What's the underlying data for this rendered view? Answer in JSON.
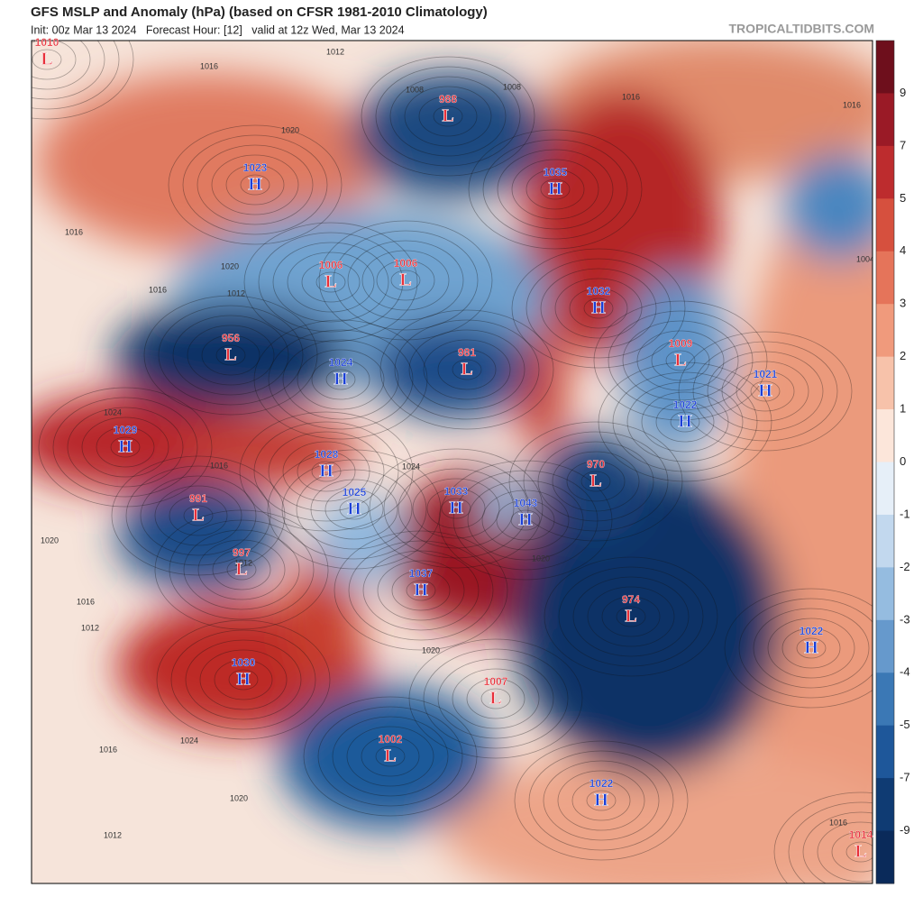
{
  "header": {
    "title": "GFS MSLP and Anomaly (hPa) (based on CFSR 1981-2010 Climatology)",
    "subtitle": "Init: 00z Mar 13 2024   Forecast Hour: [12]   valid at 12z Wed, Mar 13 2024",
    "source": "TROPICALTIDBITS.COM"
  },
  "colorbar": {
    "ticks": [
      9,
      7,
      5,
      4,
      3,
      2,
      1,
      0,
      -1,
      -2,
      -3,
      -4,
      -5,
      -7,
      -9
    ]
  },
  "centers": [
    {
      "pressure": 1010,
      "symbol": "L"
    },
    {
      "pressure": 988,
      "symbol": "L"
    },
    {
      "pressure": 1023,
      "symbol": "H"
    },
    {
      "pressure": 1035,
      "symbol": "H"
    },
    {
      "pressure": 1006,
      "symbol": "L"
    },
    {
      "pressure": 1006,
      "symbol": "L"
    },
    {
      "pressure": 1032,
      "symbol": "H"
    },
    {
      "pressure": 956,
      "symbol": "L"
    },
    {
      "pressure": 1009,
      "symbol": "L"
    },
    {
      "pressure": 1021,
      "symbol": "H"
    },
    {
      "pressure": 1024,
      "symbol": "H"
    },
    {
      "pressure": 981,
      "symbol": "L"
    },
    {
      "pressure": 1022,
      "symbol": "H"
    },
    {
      "pressure": 1029,
      "symbol": "H"
    },
    {
      "pressure": 1028,
      "symbol": "H"
    },
    {
      "pressure": 970,
      "symbol": "L"
    },
    {
      "pressure": 1025,
      "symbol": "H"
    },
    {
      "pressure": 1033,
      "symbol": "H"
    },
    {
      "pressure": 1043,
      "symbol": "H"
    },
    {
      "pressure": 991,
      "symbol": "L"
    },
    {
      "pressure": 997,
      "symbol": "L"
    },
    {
      "pressure": 1037,
      "symbol": "H"
    },
    {
      "pressure": 974,
      "symbol": "L"
    },
    {
      "pressure": 1022,
      "symbol": "H"
    },
    {
      "pressure": 1030,
      "symbol": "H"
    },
    {
      "pressure": 1007,
      "symbol": "L"
    },
    {
      "pressure": 1002,
      "symbol": "L"
    },
    {
      "pressure": 1022,
      "symbol": "H"
    },
    {
      "pressure": 1014,
      "symbol": "L"
    }
  ],
  "isobar_labels": [
    1016,
    1012,
    1020,
    1008,
    1008,
    1016,
    1016,
    1004,
    1016,
    1020,
    1016,
    1012,
    1024,
    1024,
    1016,
    1020,
    1012,
    1020,
    1016,
    1020,
    1012,
    1012,
    1016,
    1020,
    1024,
    1016
  ]
}
